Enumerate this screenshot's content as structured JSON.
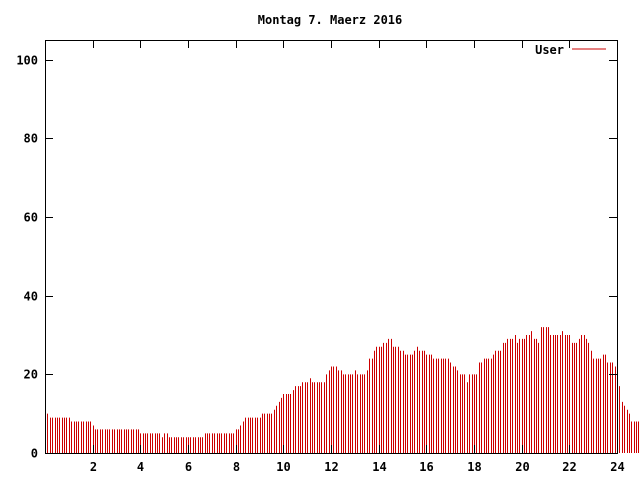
{
  "chart_data": {
    "type": "bar",
    "title": "Montag 7. Maerz 2016",
    "xlabel": "",
    "ylabel": "",
    "xlim": [
      0,
      24
    ],
    "ylim": [
      0,
      105
    ],
    "x_ticks": [
      "2",
      "4",
      "6",
      "8",
      "10",
      "12",
      "14",
      "16",
      "18",
      "20",
      "22",
      "24"
    ],
    "y_ticks": [
      "0",
      "20",
      "40",
      "60",
      "80",
      "100"
    ],
    "legend": "top-right",
    "grid": false,
    "series": [
      {
        "name": "User",
        "color": "#cc0000",
        "interval_hours": 0.1,
        "values": [
          9,
          10,
          9,
          9,
          9,
          9,
          9,
          9,
          9,
          9,
          9,
          8,
          8,
          8,
          8,
          8,
          8,
          8,
          8,
          8,
          7,
          6,
          6,
          6,
          6,
          6,
          6,
          6,
          6,
          6,
          6,
          6,
          6,
          6,
          6,
          6,
          6,
          6,
          6,
          6,
          5,
          5,
          5,
          5,
          5,
          5,
          5,
          5,
          5,
          4,
          5,
          5,
          4,
          4,
          4,
          4,
          4,
          4,
          4,
          4,
          4,
          4,
          4,
          4,
          4,
          4,
          4,
          5,
          5,
          5,
          5,
          5,
          5,
          5,
          5,
          5,
          5,
          5,
          5,
          5,
          6,
          6,
          7,
          8,
          9,
          9,
          9,
          9,
          9,
          9,
          9,
          10,
          10,
          10,
          10,
          10,
          11,
          12,
          13,
          14,
          15,
          15,
          15,
          15,
          16,
          17,
          17,
          17,
          18,
          18,
          18,
          19,
          18,
          18,
          18,
          18,
          18,
          18,
          20,
          21,
          22,
          22,
          22,
          21,
          21,
          20,
          20,
          20,
          20,
          20,
          21,
          20,
          20,
          20,
          20,
          21,
          24,
          24,
          26,
          27,
          27,
          27,
          28,
          28,
          29,
          29,
          27,
          27,
          27,
          26,
          26,
          25,
          25,
          25,
          25,
          26,
          27,
          26,
          26,
          26,
          25,
          25,
          25,
          24,
          24,
          24,
          24,
          24,
          24,
          24,
          23,
          22,
          22,
          21,
          20,
          20,
          20,
          18,
          20,
          20,
          20,
          20,
          23,
          23,
          24,
          24,
          24,
          24,
          25,
          26,
          26,
          26,
          28,
          28,
          29,
          29,
          29,
          30,
          28,
          29,
          29,
          29,
          30,
          30,
          31,
          29,
          29,
          28,
          32,
          32,
          32,
          32,
          30,
          30,
          30,
          30,
          30,
          31,
          30,
          30,
          30,
          28,
          28,
          28,
          29,
          30,
          30,
          29,
          28,
          26,
          24,
          24,
          24,
          24,
          25,
          25,
          23,
          23,
          23,
          22,
          17,
          17,
          13,
          12,
          11,
          10,
          8,
          8,
          8,
          8,
          8,
          9
        ]
      }
    ]
  }
}
